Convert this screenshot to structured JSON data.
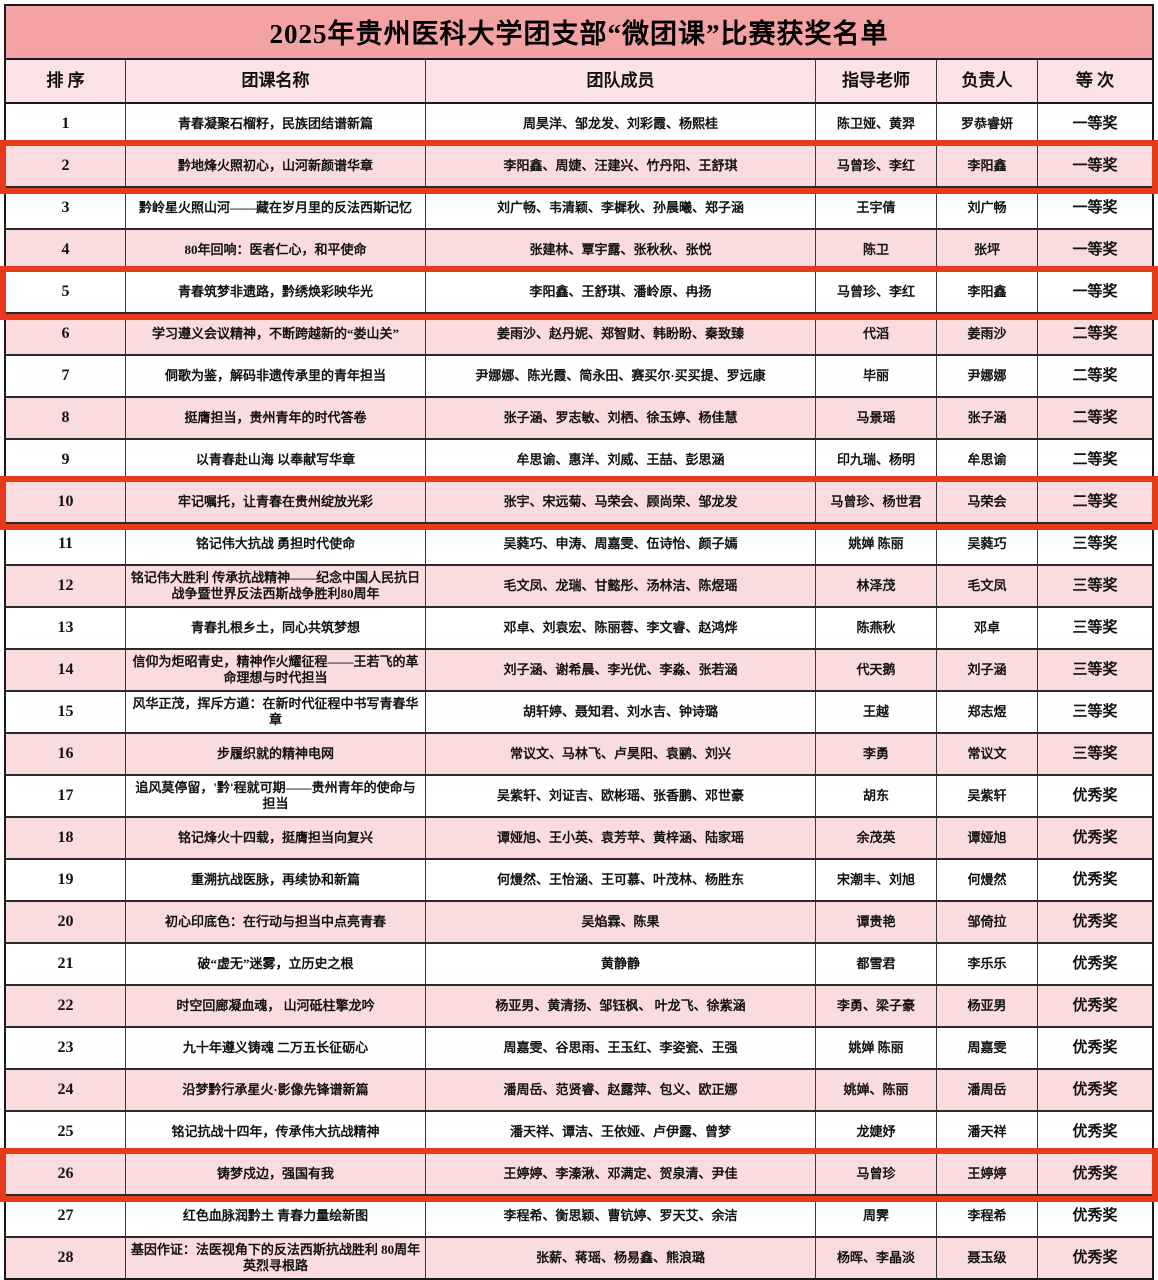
{
  "title": "2025年贵州医科大学团支部“微团课”比赛获奖名单",
  "columns": [
    "排 序",
    "团课名称",
    "团队成员",
    "指导老师",
    "负责人",
    "等 次"
  ],
  "colors": {
    "title_bg": "#f4a2a3",
    "header_bg": "#fbe2e4",
    "pink_row_bg": "#fadcde",
    "highlight_border": "#e83a1a",
    "grid_line": "#2a2a2a"
  },
  "rows": [
    {
      "rank": "1",
      "course": "青春凝聚石榴籽，民族团结谱新篇",
      "members": "周昊洋、邹龙发、刘彩霞、杨熙桂",
      "advisor": "陈卫娅、黄羿",
      "leader": "罗恭睿妍",
      "award": "一等奖",
      "highlighted": false
    },
    {
      "rank": "2",
      "course": "黔地烽火照初心，山河新颜谱华章",
      "members": "李阳鑫、周婕、汪建兴、竹丹阳、王舒琪",
      "advisor": "马曾珍、李红",
      "leader": "李阳鑫",
      "award": "一等奖",
      "highlighted": true
    },
    {
      "rank": "3",
      "course": "黔岭星火照山河——藏在岁月里的反法西斯记忆",
      "members": "刘广畅、韦清颖、李樨秋、孙晨曦、郑子涵",
      "advisor": "王宇倩",
      "leader": "刘广畅",
      "award": "一等奖",
      "highlighted": false
    },
    {
      "rank": "4",
      "course": "80年回响：医者仁心，和平使命",
      "members": "张建林、覃宇露、张秋秋、张悦",
      "advisor": "陈卫",
      "leader": "张坪",
      "award": "一等奖",
      "highlighted": false
    },
    {
      "rank": "5",
      "course": "青春筑梦非遗路，黔绣焕彩映华光",
      "members": "李阳鑫、王舒琪、潘岭原、冉扬",
      "advisor": "马曾珍、李红",
      "leader": "李阳鑫",
      "award": "一等奖",
      "highlighted": true
    },
    {
      "rank": "6",
      "course": "学习遵义会议精神，不断跨越新的“娄山关”",
      "members": "姜雨沙、赵丹妮、郑智财、韩盼盼、秦致臻",
      "advisor": "代滔",
      "leader": "姜雨沙",
      "award": "二等奖",
      "highlighted": false
    },
    {
      "rank": "7",
      "course": "侗歌为鉴，解码非遗传承里的青年担当",
      "members": "尹娜娜、陈光霞、简永田、赛买尔·买买提、罗远康",
      "advisor": "毕丽",
      "leader": "尹娜娜",
      "award": "二等奖",
      "highlighted": false
    },
    {
      "rank": "8",
      "course": "挺膺担当，贵州青年的时代答卷",
      "members": "张子涵、罗志敏、刘栖、徐玉婷、杨佳慧",
      "advisor": "马景瑶",
      "leader": "张子涵",
      "award": "二等奖",
      "highlighted": false
    },
    {
      "rank": "9",
      "course": "以青春赴山海 以奉献写华章",
      "members": "牟思谕、惠洋、刘威、王喆、彭思涵",
      "advisor": "印九瑞、杨明",
      "leader": "牟思谕",
      "award": "二等奖",
      "highlighted": false
    },
    {
      "rank": "10",
      "course": "牢记嘱托，让青春在贵州绽放光彩",
      "members": "张宇、宋远菊、马荣会、顾尚荣、邹龙发",
      "advisor": "马曾珍、杨世君",
      "leader": "马荣会",
      "award": "二等奖",
      "highlighted": true
    },
    {
      "rank": "11",
      "course": "铭记伟大抗战 勇担时代使命",
      "members": "吴蕤巧、申涛、周嘉雯、伍诗怡、颜子嫣",
      "advisor": "姚婵 陈丽",
      "leader": "吴蕤巧",
      "award": "三等奖",
      "highlighted": false
    },
    {
      "rank": "12",
      "course": "铭记伟大胜利 传承抗战精神——纪念中国人民抗日战争暨世界反法西斯战争胜利80周年",
      "members": "毛文凤、龙瑞、甘懿彤、汤林洁、陈煜瑶",
      "advisor": "林泽茂",
      "leader": "毛文凤",
      "award": "三等奖",
      "highlighted": false
    },
    {
      "rank": "13",
      "course": "青春扎根乡土，同心共筑梦想",
      "members": "邓卓、刘袁宏、陈丽蓉、李文睿、赵鸿烨",
      "advisor": "陈燕秋",
      "leader": "邓卓",
      "award": "三等奖",
      "highlighted": false
    },
    {
      "rank": "14",
      "course": "信仰为炬昭青史，精神作火耀征程——王若飞的革命理想与时代担当",
      "members": "刘子涵、谢希晨、李光优、李淼、张若涵",
      "advisor": "代天鹅",
      "leader": "刘子涵",
      "award": "三等奖",
      "highlighted": false
    },
    {
      "rank": "15",
      "course": "风华正茂，挥斥方遒：在新时代征程中书写青春华章",
      "members": "胡轩婷、聂知君、刘水吉、钟诗璐",
      "advisor": "王越",
      "leader": "郑志煜",
      "award": "三等奖",
      "highlighted": false
    },
    {
      "rank": "16",
      "course": "步履织就的精神电网",
      "members": "常议文、马林飞、卢昊阳、袁鹂、刘兴",
      "advisor": "李勇",
      "leader": "常议文",
      "award": "三等奖",
      "highlighted": false
    },
    {
      "rank": "17",
      "course": "追风莫停留，'黔'程就可期——贵州青年的使命与担当",
      "members": "吴紫轩、刘证吉、欧彬瑶、张香鹏、邓世豪",
      "advisor": "胡东",
      "leader": "吴紫轩",
      "award": "优秀奖",
      "highlighted": false
    },
    {
      "rank": "18",
      "course": "铭记烽火十四载，挺膺担当向复兴",
      "members": "谭娅旭、王小英、袁芳苹、黄梓涵、陆家瑶",
      "advisor": "余茂英",
      "leader": "谭娅旭",
      "award": "优秀奖",
      "highlighted": false
    },
    {
      "rank": "19",
      "course": "重溯抗战医脉，再续协和新篇",
      "members": "何熳然、王怡涵、王可慕、叶茂林、杨胜东",
      "advisor": "宋潮丰、刘旭",
      "leader": "何熳然",
      "award": "优秀奖",
      "highlighted": false
    },
    {
      "rank": "20",
      "course": "初心印底色：在行动与担当中点亮青春",
      "members": "吴焰霖、陈果",
      "advisor": "谭贵艳",
      "leader": "邹倚拉",
      "award": "优秀奖",
      "highlighted": false
    },
    {
      "rank": "21",
      "course": "破“虚无”迷雾，立历史之根",
      "members": "黄静静",
      "advisor": "都雪君",
      "leader": "李乐乐",
      "award": "优秀奖",
      "highlighted": false
    },
    {
      "rank": "22",
      "course": "时空回廊凝血魂， 山河砥柱擎龙吟",
      "members": "杨亚男、黄清扬、邹钰枫、 叶龙飞、徐紫涵",
      "advisor": "李勇、梁子豪",
      "leader": "杨亚男",
      "award": "优秀奖",
      "highlighted": false
    },
    {
      "rank": "23",
      "course": "九十年遵义铸魂 二万五长征砺心",
      "members": "周嘉雯、谷思雨、王玉红、李姿瓷、王强",
      "advisor": "姚婵 陈丽",
      "leader": "周嘉雯",
      "award": "优秀奖",
      "highlighted": false
    },
    {
      "rank": "24",
      "course": "沿梦黔行承星火·影像先锋谱新篇",
      "members": "潘周岳、范贤睿、赵露萍、包义、欧正娜",
      "advisor": "姚婵、陈丽",
      "leader": "潘周岳",
      "award": "优秀奖",
      "highlighted": false
    },
    {
      "rank": "25",
      "course": "铭记抗战十四年，传承伟大抗战精神",
      "members": "潘天祥、谭洁、王依娅、卢伊露、曾梦",
      "advisor": "龙婕妤",
      "leader": "潘天祥",
      "award": "优秀奖",
      "highlighted": false
    },
    {
      "rank": "26",
      "course": "铸梦戍边，强国有我",
      "members": "王婷婷、李溱湫、邓满定、贺泉清、尹佳",
      "advisor": "马曾珍",
      "leader": "王婷婷",
      "award": "优秀奖",
      "highlighted": true
    },
    {
      "rank": "27",
      "course": "红色血脉润黔土 青春力量绘新图",
      "members": "李程希、衡思颖、曹钪婷、罗天艾、余洁",
      "advisor": "周霁",
      "leader": "李程希",
      "award": "优秀奖",
      "highlighted": false
    },
    {
      "rank": "28",
      "course": "基因作证：法医视角下的反法西斯抗战胜利 80周年英烈寻根路",
      "members": "张薪、蒋瑶、杨易鑫、熊浪璐",
      "advisor": "杨晖、李晶淡",
      "leader": "聂玉级",
      "award": "优秀奖",
      "highlighted": false
    }
  ]
}
